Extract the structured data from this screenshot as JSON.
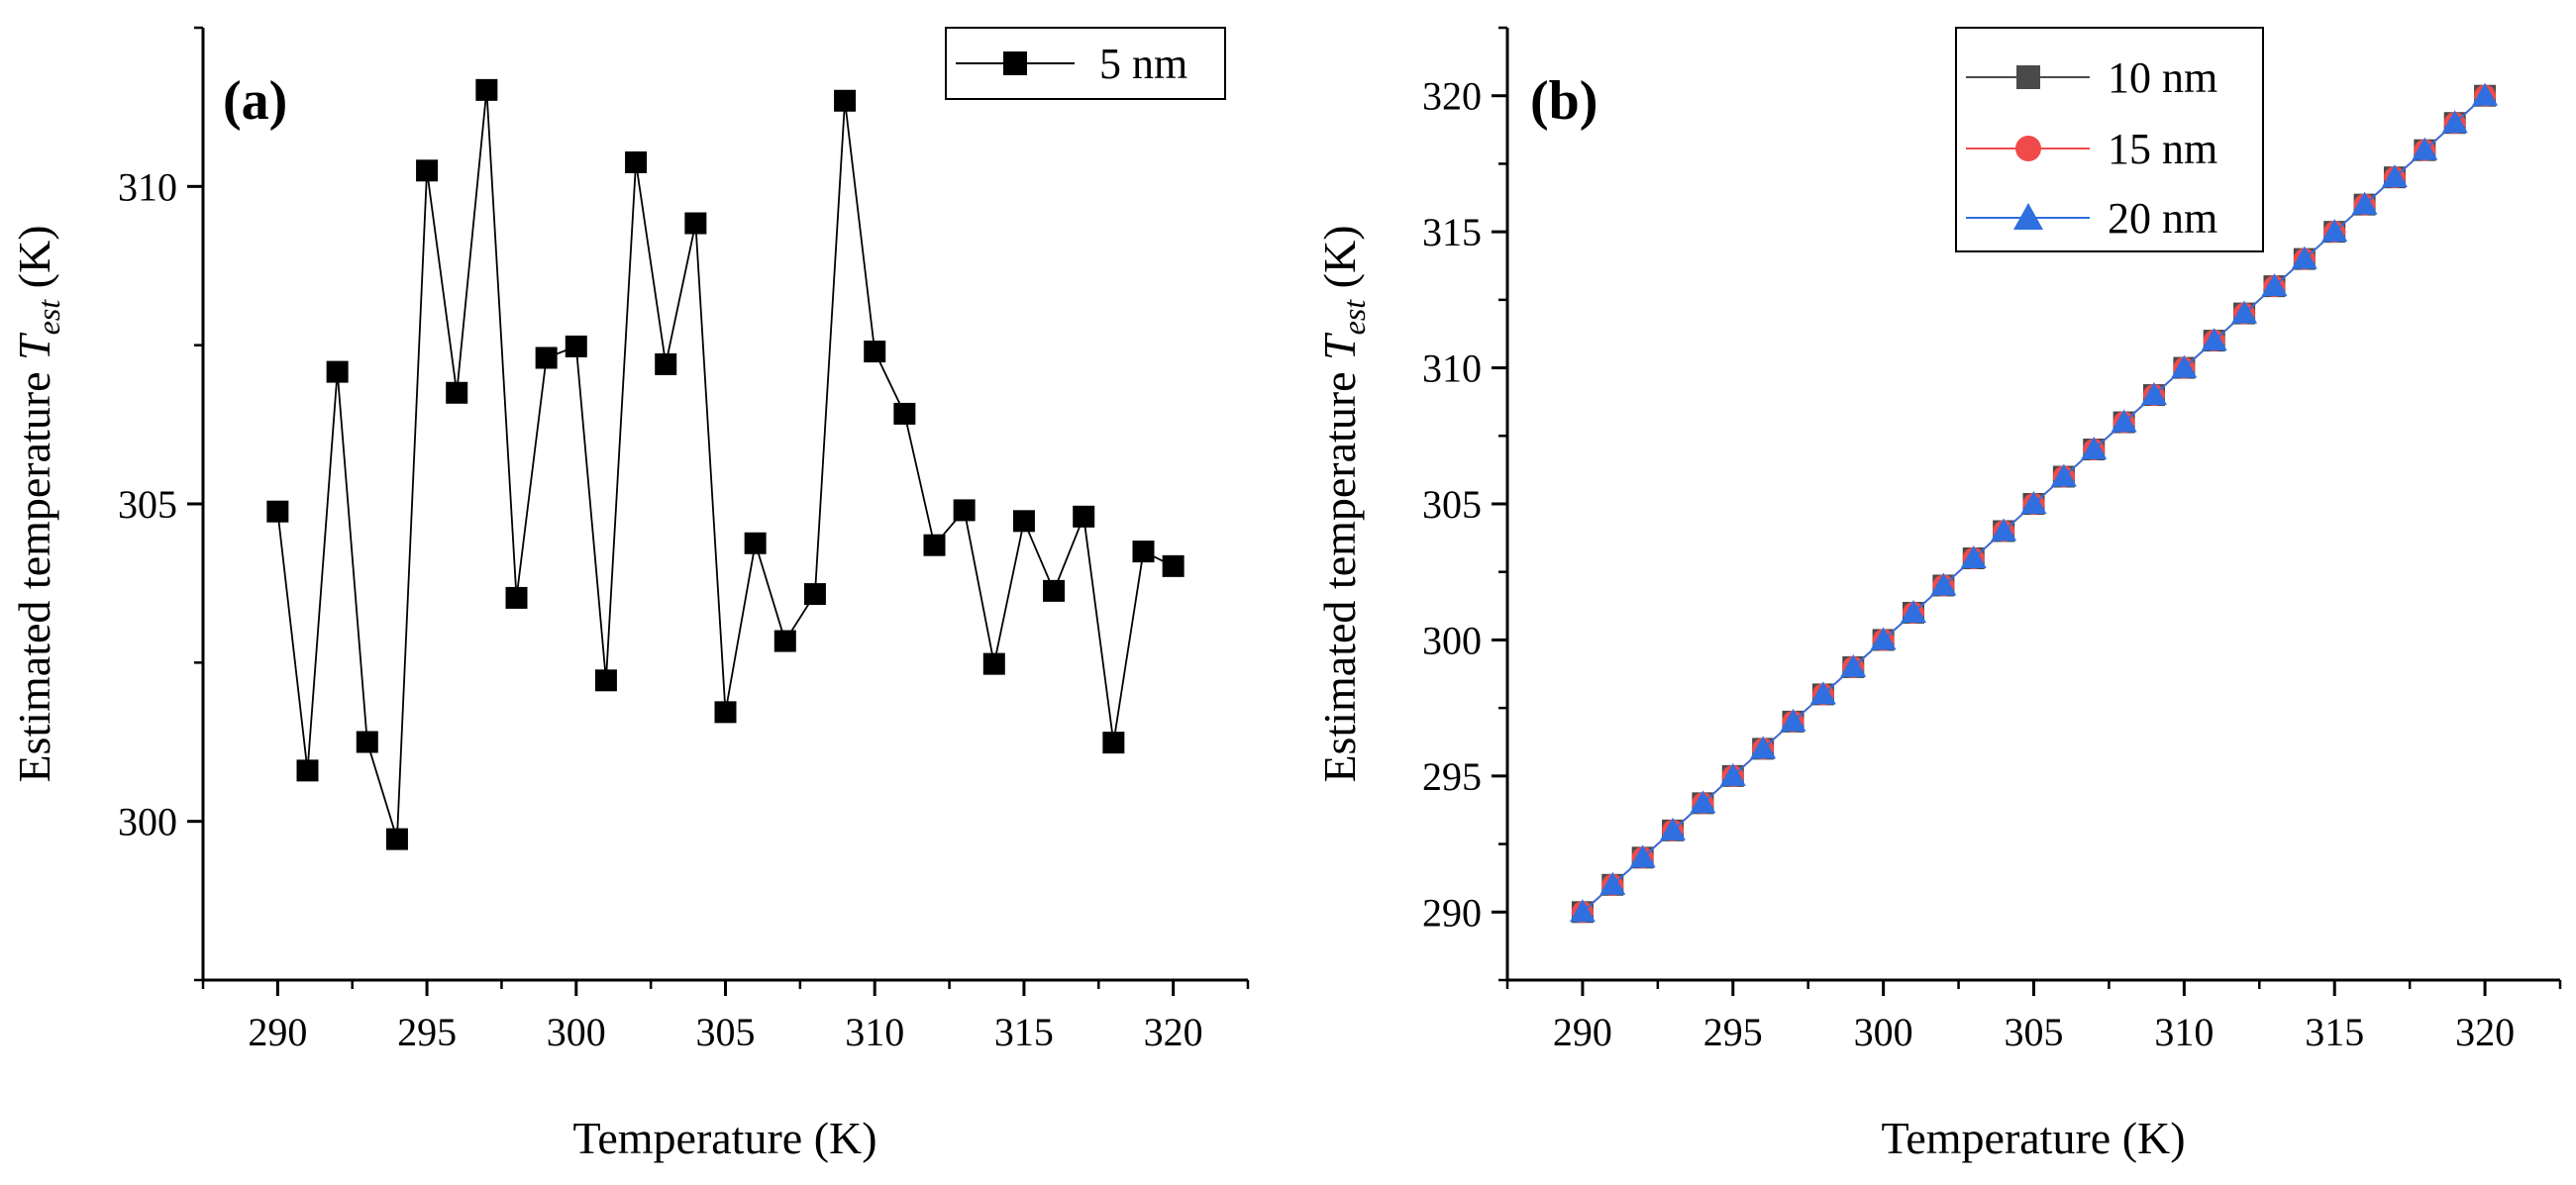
{
  "chart_data": [
    {
      "type": "line",
      "panel_label": "(a)",
      "xlabel": "Temperature  (K)",
      "ylabel_main": "Estimated temperature ",
      "ylabel_var": "T",
      "ylabel_sub": "est",
      "ylabel_unit": "  (K)",
      "xlim": [
        287.5,
        322.5
      ],
      "ylim": [
        297.5,
        312.5
      ],
      "x_ticks": [
        290,
        295,
        300,
        305,
        310,
        315,
        320
      ],
      "y_ticks": [
        300,
        305,
        310
      ],
      "x_tick_labels": [
        "290",
        "295",
        "300",
        "305",
        "310",
        "315",
        "320"
      ],
      "y_tick_labels": [
        "300",
        "305",
        "310"
      ],
      "legend_position": "top-right",
      "series": [
        {
          "name": "5 nm",
          "color": "#000000",
          "marker": "square",
          "x": [
            290,
            291,
            292,
            293,
            294,
            295,
            296,
            297,
            298,
            299,
            300,
            301,
            302,
            303,
            304,
            305,
            306,
            307,
            308,
            309,
            310,
            311,
            312,
            313,
            314,
            315,
            316,
            317,
            318,
            319,
            320
          ],
          "values": [
            304.88,
            300.8,
            307.08,
            301.25,
            299.72,
            310.25,
            306.75,
            311.52,
            303.52,
            307.3,
            307.48,
            302.22,
            310.38,
            307.2,
            309.42,
            301.72,
            304.38,
            302.84,
            303.58,
            311.35,
            307.4,
            306.42,
            304.35,
            304.9,
            302.48,
            304.73,
            303.63,
            304.8,
            301.24,
            304.25,
            304.02
          ]
        }
      ]
    },
    {
      "type": "line",
      "panel_label": "(b)",
      "xlabel": "Temperature  (K)",
      "ylabel_main": "Estimated temperature ",
      "ylabel_var": "T",
      "ylabel_sub": "est",
      "ylabel_unit": "  (K)",
      "xlim": [
        287.5,
        322.5
      ],
      "ylim": [
        287.5,
        322.5
      ],
      "x_ticks": [
        290,
        295,
        300,
        305,
        310,
        315,
        320
      ],
      "y_ticks": [
        290,
        295,
        300,
        305,
        310,
        315,
        320
      ],
      "x_tick_labels": [
        "290",
        "295",
        "300",
        "305",
        "310",
        "315",
        "320"
      ],
      "y_tick_labels": [
        "290",
        "295",
        "300",
        "305",
        "310",
        "315",
        "320"
      ],
      "legend_position": "top-center",
      "series": [
        {
          "name": "10 nm",
          "color": "#4a4a4a",
          "marker": "square",
          "x": [
            290,
            291,
            292,
            293,
            294,
            295,
            296,
            297,
            298,
            299,
            300,
            301,
            302,
            303,
            304,
            305,
            306,
            307,
            308,
            309,
            310,
            311,
            312,
            313,
            314,
            315,
            316,
            317,
            318,
            319,
            320
          ],
          "values": [
            290,
            291,
            292,
            293,
            294,
            295,
            296,
            297,
            298,
            299,
            300,
            301,
            302,
            303,
            304,
            305,
            306,
            307,
            308,
            309,
            310,
            311,
            312,
            313,
            314,
            315,
            316,
            317,
            318,
            319,
            320
          ]
        },
        {
          "name": "15 nm",
          "color": "#f04a4a",
          "marker": "circle",
          "x": [
            290,
            291,
            292,
            293,
            294,
            295,
            296,
            297,
            298,
            299,
            300,
            301,
            302,
            303,
            304,
            305,
            306,
            307,
            308,
            309,
            310,
            311,
            312,
            313,
            314,
            315,
            316,
            317,
            318,
            319,
            320
          ],
          "values": [
            290,
            291,
            292,
            293,
            294,
            295,
            296,
            297,
            298,
            299,
            300,
            301,
            302,
            303,
            304,
            305,
            306,
            307,
            308,
            309,
            310,
            311,
            312,
            313,
            314,
            315,
            316,
            317,
            318,
            319,
            320
          ]
        },
        {
          "name": "20 nm",
          "color": "#2f6fe0",
          "marker": "triangle",
          "x": [
            290,
            291,
            292,
            293,
            294,
            295,
            296,
            297,
            298,
            299,
            300,
            301,
            302,
            303,
            304,
            305,
            306,
            307,
            308,
            309,
            310,
            311,
            312,
            313,
            314,
            315,
            316,
            317,
            318,
            319,
            320
          ],
          "values": [
            290,
            291,
            292,
            293,
            294,
            295,
            296,
            297,
            298,
            299,
            300,
            301,
            302,
            303,
            304,
            305,
            306,
            307,
            308,
            309,
            310,
            311,
            312,
            313,
            314,
            315,
            316,
            317,
            318,
            319,
            320
          ]
        }
      ]
    }
  ]
}
